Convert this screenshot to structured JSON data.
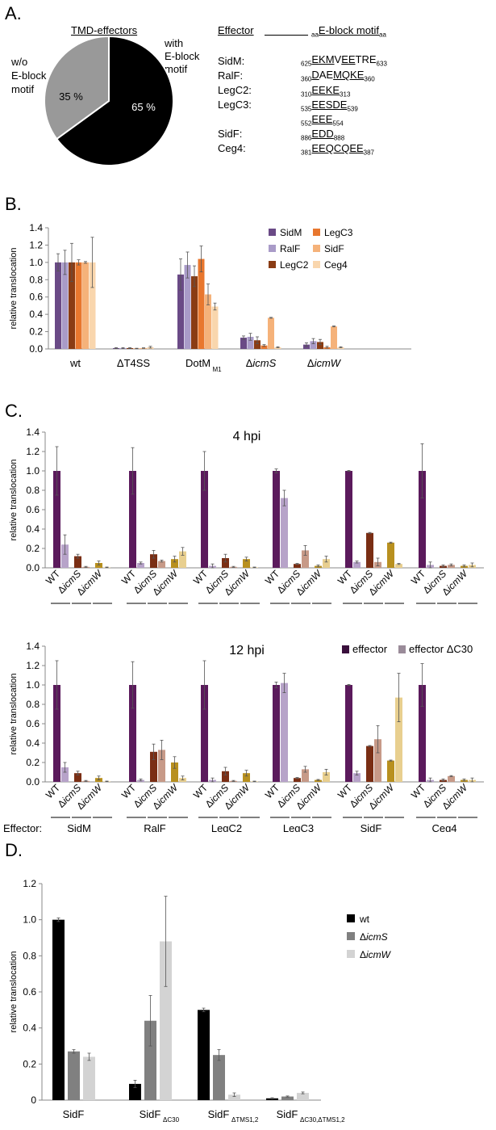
{
  "panelA": {
    "letter": "A.",
    "pie_title": "TMD-effectors",
    "with_label": [
      "with",
      "E-block",
      "motif"
    ],
    "without_label": [
      "w/o",
      "E-block",
      "motif"
    ],
    "effector_header": "Effector",
    "motif_header": "E-block motif",
    "motif_header_sub": "aa",
    "pie": {
      "with_pct": 65,
      "without_pct": 35,
      "with_label": "65 %",
      "without_label": "35 %",
      "with_color": "#000000",
      "without_color": "#999999"
    },
    "effectors": [
      "SidM:",
      "RalF:",
      "LegC2:",
      "LegC3:",
      "SidF:",
      "Ceg4:"
    ],
    "motifs": [
      {
        "pre": "625",
        "parts": [
          [
            "EKM",
            1
          ],
          [
            "V",
            0
          ],
          [
            "EE",
            1
          ],
          [
            "TRE",
            0
          ]
        ],
        "post": "633"
      },
      {
        "pre": "360",
        "parts": [
          [
            "D",
            1
          ],
          [
            "AE",
            0
          ],
          [
            "MQKE",
            1
          ]
        ],
        "post": "360"
      },
      {
        "pre": "310",
        "parts": [
          [
            "EEKE",
            1
          ]
        ],
        "post": "313"
      },
      {
        "pre": "535",
        "parts": [
          [
            "EESDE",
            1
          ]
        ],
        "post": "539"
      },
      {
        "pre": "552",
        "parts": [
          [
            "EEE",
            1
          ]
        ],
        "post": "554"
      },
      {
        "pre": "886",
        "parts": [
          [
            "EDD",
            1
          ]
        ],
        "post": "888"
      },
      {
        "pre": "381",
        "parts": [
          [
            "EEQCQEE",
            1
          ]
        ],
        "post": "387"
      }
    ]
  },
  "panelB": {
    "letter": "B.",
    "ylabel": "relative translocation",
    "legend_left": [
      "SidM",
      "RalF",
      "LegC2"
    ],
    "legend_right": [
      "LegC3",
      "SidF",
      "Ceg4"
    ],
    "group_labels": [
      "wt",
      "ΔT4SS",
      "DotM",
      "ΔicmS",
      "ΔicmW"
    ],
    "dotm_sub": "M1",
    "yticks": [
      "0.0",
      "0.2",
      "0.4",
      "0.6",
      "0.8",
      "1.0",
      "1.2",
      "1.4"
    ]
  },
  "panelC": {
    "letter": "C.",
    "title_4": "4 hpi",
    "title_12": "12 hpi",
    "ylabel": "relative translocation",
    "effector_row_label": "Effector:",
    "legend_effector": "effector",
    "legend_dc30": "effector ΔC30",
    "bar_labels": [
      "WT",
      "ΔicmS",
      "ΔicmW"
    ],
    "groups": [
      "SidM",
      "RalF",
      "LegC2",
      "LegC3",
      "SidF",
      "Ceg4"
    ],
    "yticks": [
      "0.0",
      "0.2",
      "0.4",
      "0.6",
      "0.8",
      "1.0",
      "1.2",
      "1.4"
    ]
  },
  "panelD": {
    "letter": "D.",
    "ylabel": "relative translocation",
    "legend": [
      "wt",
      "ΔicmS",
      "ΔicmW"
    ],
    "categories": [
      {
        "name": "SidF",
        "sub": ""
      },
      {
        "name": "SidF",
        "sub": "ΔC30"
      },
      {
        "name": "SidF",
        "sub": "ΔTMS1,2"
      },
      {
        "name": "SidF",
        "sub": "ΔC30,ΔTMS1,2"
      }
    ],
    "yticks": [
      "0",
      "0.2",
      "0.4",
      "0.6",
      "0.8",
      "1.0",
      "1.2"
    ]
  },
  "chart_data": [
    {
      "type": "pie",
      "title": "TMD-effectors",
      "labels": [
        "with E-block motif",
        "w/o E-block motif"
      ],
      "values": [
        65,
        35
      ]
    },
    {
      "type": "bar",
      "ylabel": "relative translocation",
      "ylim": [
        0,
        1.4
      ],
      "categories": [
        "wt",
        "ΔT4SS",
        "DotM M1",
        "ΔicmS",
        "ΔicmW"
      ],
      "series": [
        {
          "name": "SidM",
          "color": "#6a4a86",
          "values": [
            1.0,
            0.01,
            0.86,
            0.13,
            0.05
          ],
          "err": [
            0.1,
            0.005,
            0.18,
            0.02,
            0.02
          ]
        },
        {
          "name": "RalF",
          "color": "#a99bc8",
          "values": [
            1.0,
            0.01,
            0.97,
            0.14,
            0.09
          ],
          "err": [
            0.14,
            0.005,
            0.15,
            0.04,
            0.03
          ]
        },
        {
          "name": "LegC2",
          "color": "#8a3c14",
          "values": [
            1.0,
            0.01,
            0.84,
            0.1,
            0.08
          ],
          "err": [
            0.22,
            0.005,
            0.12,
            0.04,
            0.03
          ]
        },
        {
          "name": "LegC3",
          "color": "#e8772e",
          "values": [
            1.0,
            0.005,
            1.04,
            0.04,
            0.02
          ],
          "err": [
            0.03,
            0.003,
            0.15,
            0.01,
            0.01
          ]
        },
        {
          "name": "SidF",
          "color": "#f5b27a",
          "values": [
            1.0,
            0.01,
            0.63,
            0.36,
            0.26
          ],
          "err": [
            0.01,
            0.003,
            0.12,
            0.005,
            0.005
          ]
        },
        {
          "name": "Ceg4",
          "color": "#f9d6ad",
          "values": [
            1.0,
            0.02,
            0.49,
            0.02,
            0.02
          ],
          "err": [
            0.29,
            0.01,
            0.04,
            0.005,
            0.005
          ]
        }
      ]
    },
    {
      "type": "bar",
      "title": "4 hpi",
      "ylabel": "relative translocation",
      "ylim": [
        0,
        1.4
      ],
      "groups": [
        "SidM",
        "RalF",
        "LegC2",
        "LegC3",
        "SidF",
        "Ceg4"
      ],
      "conditions": [
        "WT",
        "ΔicmS",
        "ΔicmW"
      ],
      "series": [
        {
          "name": "effector",
          "values": [
            [
              1.0,
              0.12,
              0.05
            ],
            [
              1.0,
              0.14,
              0.09
            ],
            [
              1.0,
              0.1,
              0.09
            ],
            [
              1.0,
              0.04,
              0.02
            ],
            [
              1.0,
              0.36,
              0.26
            ],
            [
              1.0,
              0.02,
              0.02
            ]
          ],
          "err": [
            [
              0.25,
              0.02,
              0.02
            ],
            [
              0.24,
              0.04,
              0.03
            ],
            [
              0.2,
              0.04,
              0.02
            ],
            [
              0.02,
              0.005,
              0.01
            ],
            [
              0.005,
              0.005,
              0.005
            ],
            [
              0.28,
              0.01,
              0.01
            ]
          ]
        },
        {
          "name": "effector ΔC30",
          "values": [
            [
              0.24,
              0.01,
              0.005
            ],
            [
              0.05,
              0.07,
              0.17
            ],
            [
              0.02,
              0.01,
              0.005
            ],
            [
              0.72,
              0.18,
              0.09
            ],
            [
              0.06,
              0.06,
              0.04
            ],
            [
              0.03,
              0.03,
              0.03
            ]
          ],
          "err": [
            [
              0.1,
              0.005,
              0.003
            ],
            [
              0.01,
              0.01,
              0.04
            ],
            [
              0.02,
              0.005,
              0.003
            ],
            [
              0.08,
              0.05,
              0.03
            ],
            [
              0.01,
              0.04,
              0.005
            ],
            [
              0.03,
              0.01,
              0.02
            ]
          ]
        }
      ]
    },
    {
      "type": "bar",
      "title": "12 hpi",
      "ylabel": "relative translocation",
      "ylim": [
        0,
        1.4
      ],
      "groups": [
        "SidM",
        "RalF",
        "LegC2",
        "LegC3",
        "SidF",
        "Ceg4"
      ],
      "conditions": [
        "WT",
        "ΔicmS",
        "ΔicmW"
      ],
      "series": [
        {
          "name": "effector",
          "values": [
            [
              1.0,
              0.09,
              0.04
            ],
            [
              1.0,
              0.31,
              0.2
            ],
            [
              1.0,
              0.11,
              0.09
            ],
            [
              1.0,
              0.04,
              0.02
            ],
            [
              1.0,
              0.37,
              0.22
            ],
            [
              1.0,
              0.02,
              0.02
            ]
          ],
          "err": [
            [
              0.25,
              0.02,
              0.02
            ],
            [
              0.24,
              0.08,
              0.06
            ],
            [
              0.25,
              0.04,
              0.03
            ],
            [
              0.03,
              0.005,
              0.005
            ],
            [
              0.005,
              0.005,
              0.005
            ],
            [
              0.22,
              0.01,
              0.01
            ]
          ]
        },
        {
          "name": "effector ΔC30",
          "values": [
            [
              0.15,
              0.01,
              0.005
            ],
            [
              0.02,
              0.33,
              0.04
            ],
            [
              0.02,
              0.01,
              0.005
            ],
            [
              1.02,
              0.13,
              0.1
            ],
            [
              0.09,
              0.44,
              0.87
            ],
            [
              0.02,
              0.06,
              0.02
            ]
          ],
          "err": [
            [
              0.05,
              0.005,
              0.003
            ],
            [
              0.01,
              0.1,
              0.02
            ],
            [
              0.02,
              0.005,
              0.003
            ],
            [
              0.1,
              0.03,
              0.03
            ],
            [
              0.02,
              0.14,
              0.25
            ],
            [
              0.02,
              0.005,
              0.02
            ]
          ]
        }
      ]
    },
    {
      "type": "bar",
      "ylabel": "relative translocation",
      "ylim": [
        0,
        1.2
      ],
      "categories": [
        "SidF",
        "SidF ΔC30",
        "SidF ΔTMS1,2",
        "SidF ΔC30,ΔTMS1,2"
      ],
      "series": [
        {
          "name": "wt",
          "color": "#000000",
          "values": [
            1.0,
            0.09,
            0.5,
            0.01
          ],
          "err": [
            0.01,
            0.02,
            0.01,
            0.003
          ]
        },
        {
          "name": "ΔicmS",
          "color": "#808080",
          "values": [
            0.27,
            0.44,
            0.25,
            0.02
          ],
          "err": [
            0.01,
            0.14,
            0.03,
            0.003
          ]
        },
        {
          "name": "ΔicmW",
          "color": "#d3d3d3",
          "values": [
            0.24,
            0.88,
            0.03,
            0.04
          ],
          "err": [
            0.02,
            0.25,
            0.01,
            0.005
          ]
        }
      ]
    }
  ]
}
